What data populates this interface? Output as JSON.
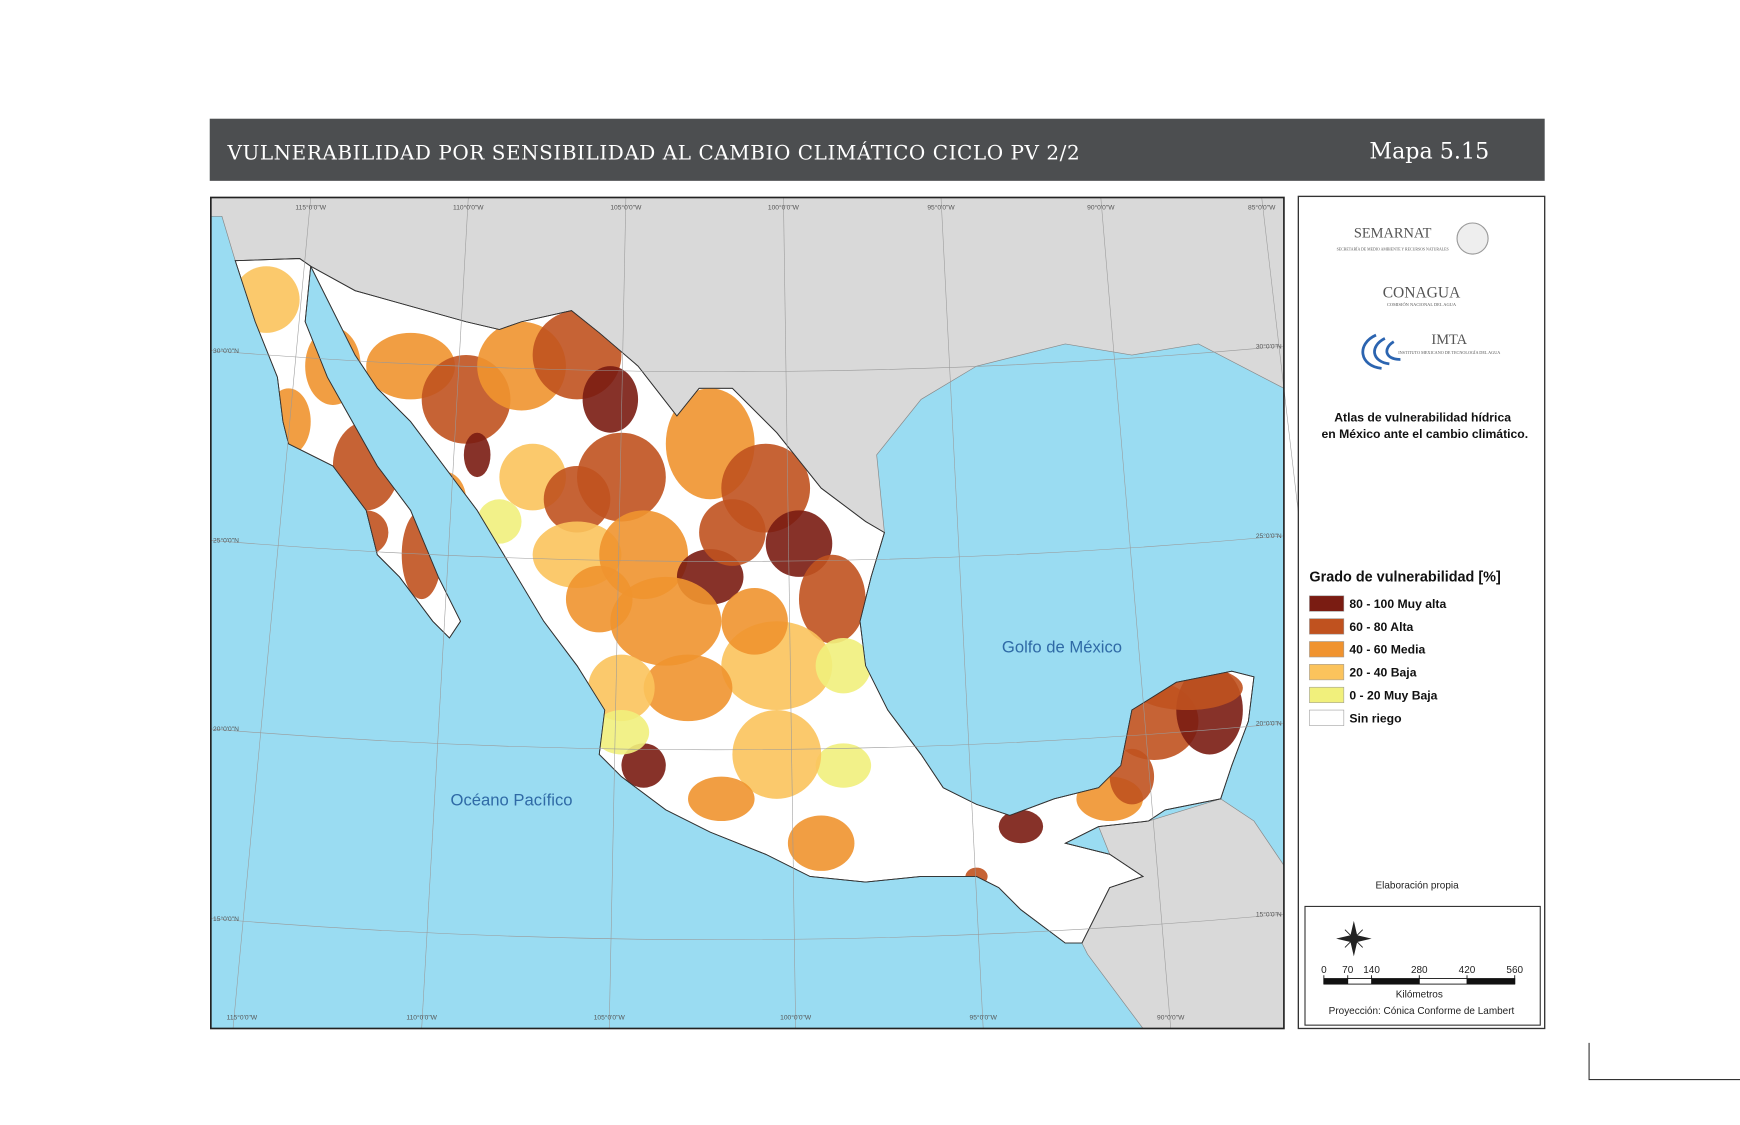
{
  "header": {
    "title": "VULNERABILIDAD POR SENSIBILIDAD AL CAMBIO CLIMÁTICO CICLO PV 2/2",
    "map_number": "Mapa 5.15"
  },
  "map": {
    "graticule_top": [
      "115°0'0\"W",
      "110°0'0\"W",
      "105°0'0\"W",
      "100°0'0\"W",
      "95°0'0\"W",
      "90°0'0\"W",
      "85°0'0\"W"
    ],
    "graticule_bottom": [
      "115°0'0\"W",
      "110°0'0\"W",
      "105°0'0\"W",
      "100°0'0\"W",
      "95°0'0\"W",
      "90°0'0\"W"
    ],
    "graticule_left": [
      "30°0'0\"N",
      "25°0'0\"N",
      "20°0'0\"N",
      "15°0'0\"N"
    ],
    "graticule_right": [
      "30°0'0\"N",
      "25°0'0\"N",
      "20°0'0\"N",
      "15°0'0\"N"
    ],
    "sea_labels": [
      "Golfo de México",
      "Océano Pacífico"
    ]
  },
  "panel": {
    "logos": [
      {
        "name": "SEMARNAT",
        "subtitle": "SECRETARÍA DE MEDIO AMBIENTE Y RECURSOS NATURALES"
      },
      {
        "name": "CONAGUA",
        "subtitle": "COMISIÓN NACIONAL DEL AGUA"
      },
      {
        "name": "IMTA",
        "subtitle": "INSTITUTO MEXICANO DE TECNOLOGÍA DEL AGUA"
      }
    ],
    "atlas_title": [
      "Atlas de vulnerabilidad  hídrica",
      "en México ante el cambio climático."
    ],
    "legend": {
      "title": "Grado de vulnerabilidad [%]",
      "items": [
        {
          "label": "80 - 100 Muy alta",
          "color": "#7a1c12"
        },
        {
          "label": "60 - 80 Alta",
          "color": "#c0521f"
        },
        {
          "label": "40 - 60 Media",
          "color": "#f0932f"
        },
        {
          "label": "20 - 40 Baja",
          "color": "#fbc35c"
        },
        {
          "label": "0 - 20 Muy Baja",
          "color": "#f1f07c"
        },
        {
          "label": "Sin riego",
          "color": "#ffffff"
        }
      ]
    },
    "credit": "Elaboración propia",
    "scale_bar": {
      "ticks": [
        0,
        70,
        140,
        280,
        420,
        560
      ],
      "unit": "Kilómetros",
      "projection": "Proyección: Cónica Conforme de Lambert"
    }
  }
}
